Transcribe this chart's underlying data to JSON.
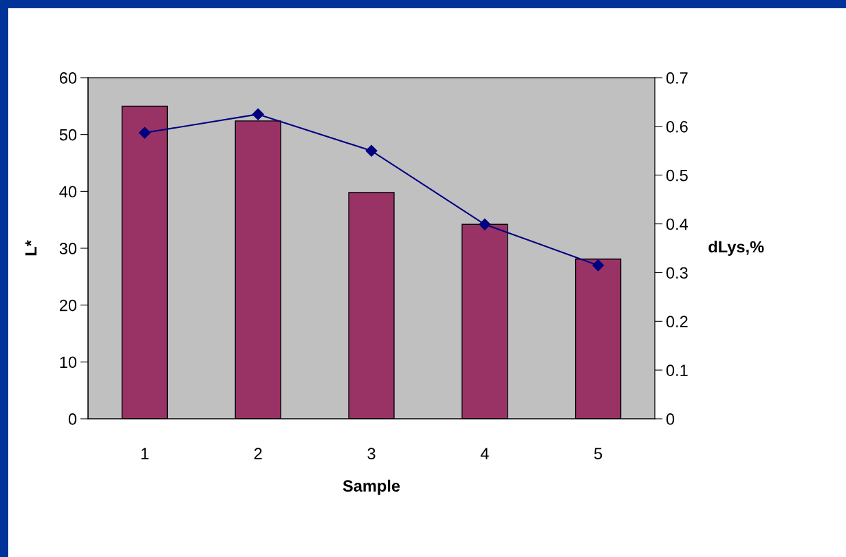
{
  "chart_data": {
    "type": "bar",
    "xlabel": "Sample",
    "ylabel": "L*",
    "y2label": "dLys,%",
    "categories": [
      "1",
      "2",
      "3",
      "4",
      "5"
    ],
    "series": [
      {
        "color": "#993366",
        "values": [
          55.0,
          52.4,
          39.8,
          34.2,
          28.1
        ]
      },
      {
        "type": "line",
        "axis": "y2",
        "color": "#000080",
        "values": [
          0.587,
          0.625,
          0.55,
          0.399,
          0.315
        ]
      }
    ],
    "ylim": [
      0,
      60
    ],
    "yticks": [
      0,
      10,
      20,
      30,
      40,
      50,
      60
    ],
    "y2lim": [
      0,
      0.7
    ],
    "y2ticks": [
      0,
      0.1,
      0.2,
      0.3,
      0.4,
      0.5,
      0.6,
      0.7
    ],
    "marker": "diamond",
    "line_style": "solid",
    "grid": false,
    "legend": false
  }
}
